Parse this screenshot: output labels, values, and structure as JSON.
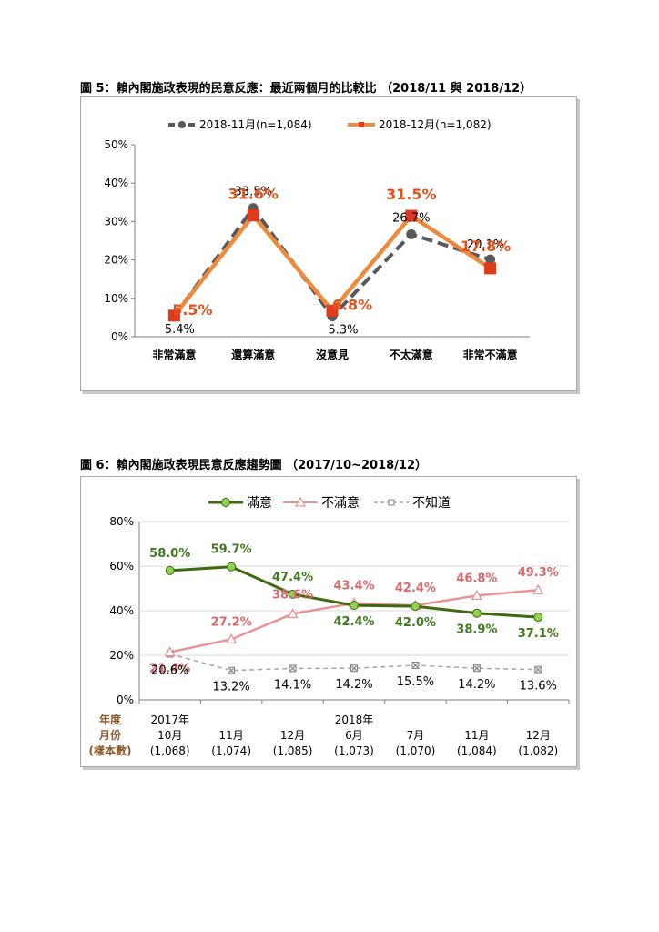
{
  "figure5": {
    "title": "圖 5：賴內閣施政表現的民意反應：最近兩個月的比較比 （2018/11 與 2018/12）",
    "chart_data": {
      "type": "line",
      "categories": [
        "非常滿意",
        "還算滿意",
        "沒意見",
        "不太滿意",
        "非常不滿意"
      ],
      "ylim": [
        0,
        50
      ],
      "yticks": [
        "0%",
        "10%",
        "20%",
        "30%",
        "40%",
        "50%"
      ],
      "series": [
        {
          "name": "2018-11月(n=1,084)",
          "values": [
            5.4,
            33.5,
            5.3,
            26.7,
            20.1
          ],
          "labels": [
            "5.4%",
            "33.5%",
            "5.3%",
            "26.7%",
            "20.1%"
          ],
          "color": "#595959",
          "style": "dashed-circle"
        },
        {
          "name": "2018-12月(n=1,082)",
          "values": [
            5.5,
            31.6,
            6.8,
            31.5,
            17.8
          ],
          "labels": [
            "5.5%",
            "31.6%",
            "6.8%",
            "31.5%",
            "17.8%"
          ],
          "color": "#ed8a3c",
          "marker_color": "#e0391c",
          "style": "solid-square"
        }
      ]
    }
  },
  "figure6": {
    "title": "圖 6：賴內閣施政表現民意反應趨勢圖 （2017/10~2018/12）",
    "chart_data": {
      "type": "line",
      "ylim": [
        0,
        80
      ],
      "yticks": [
        "0%",
        "20%",
        "40%",
        "60%",
        "80%"
      ],
      "side_labels": [
        "年度",
        "月份",
        "(樣本數)"
      ],
      "categories": [
        {
          "lines": [
            "2017年",
            "10月",
            "(1,068)"
          ]
        },
        {
          "lines": [
            "11月",
            "(1,074)"
          ]
        },
        {
          "lines": [
            "12月",
            "(1,085)"
          ]
        },
        {
          "lines": [
            "2018年",
            "6月",
            "(1,073)"
          ]
        },
        {
          "lines": [
            "7月",
            "(1,070)"
          ]
        },
        {
          "lines": [
            "11月",
            "(1,084)"
          ]
        },
        {
          "lines": [
            "12月",
            "(1,082)"
          ]
        }
      ],
      "series": [
        {
          "name": "滿意",
          "values": [
            58.0,
            59.7,
            47.4,
            42.4,
            42.0,
            38.9,
            37.1
          ],
          "labels": [
            "58.0%",
            "59.7%",
            "47.4%",
            "42.4%",
            "42.0%",
            "38.9%",
            "37.1%"
          ],
          "color": "#3e6b12",
          "marker_color": "#92d050"
        },
        {
          "name": "不滿意",
          "values": [
            21.4,
            27.2,
            38.6,
            43.4,
            42.4,
            46.8,
            49.3
          ],
          "labels": [
            "21.4%",
            "27.2%",
            "38.6%",
            "43.4%",
            "42.4%",
            "46.8%",
            "49.3%"
          ],
          "color": "#e89393"
        },
        {
          "name": "不知道",
          "values": [
            20.6,
            13.2,
            14.1,
            14.2,
            15.5,
            14.2,
            13.6
          ],
          "labels": [
            "20.6%",
            "13.2%",
            "14.1%",
            "14.2%",
            "15.5%",
            "14.2%",
            "13.6%"
          ],
          "color": "#a6a6a6"
        }
      ]
    }
  }
}
